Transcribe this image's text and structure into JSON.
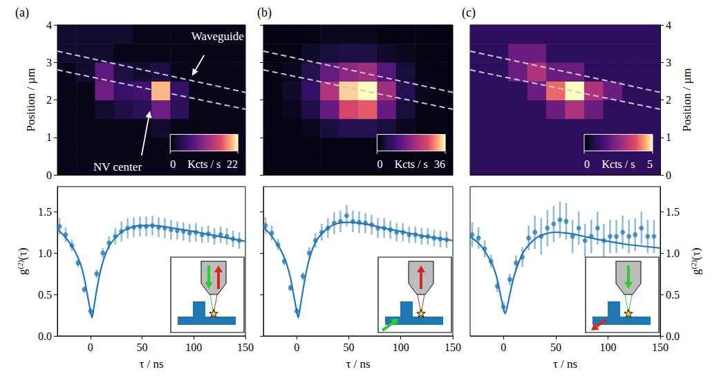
{
  "chart_data": [
    {
      "type": "heatmap",
      "label": "(a)",
      "xlim": [
        0,
        5
      ],
      "ylim": [
        0,
        4
      ],
      "yticks": [
        0,
        1,
        2,
        3,
        4
      ],
      "tick_labels": "y",
      "ylabel": "Position / µm",
      "x_edges": [
        0,
        0.5,
        1,
        1.5,
        2,
        2.5,
        3,
        3.5,
        4,
        4.5,
        5
      ],
      "y_edges": [
        0,
        0.5,
        1,
        1.5,
        2,
        2.5,
        3,
        3.5,
        4
      ],
      "z": [
        [
          1,
          1,
          1,
          1,
          1,
          1,
          1,
          1,
          1,
          1
        ],
        [
          1,
          1,
          1,
          1,
          1,
          1,
          1,
          1,
          1,
          1
        ],
        [
          1,
          1,
          1,
          1,
          1,
          2,
          1,
          1,
          1,
          1
        ],
        [
          1,
          1,
          2,
          3,
          4,
          9,
          4,
          1,
          1,
          1
        ],
        [
          1,
          1,
          9,
          5,
          6,
          20,
          5,
          1,
          1,
          1
        ],
        [
          1,
          2,
          8,
          3,
          2,
          3,
          1,
          1,
          1,
          1
        ],
        [
          2,
          2,
          2,
          1,
          1,
          1,
          1,
          1,
          1,
          1
        ],
        [
          2,
          2,
          2,
          2,
          1,
          1,
          1,
          1,
          1,
          1
        ]
      ],
      "colorbar": {
        "range": [
          0,
          22
        ],
        "ticks": [
          0,
          22
        ],
        "label": "Kcts / s"
      },
      "waveguide": [
        [
          [
            0,
            3.3
          ],
          [
            5,
            2.2
          ]
        ],
        [
          [
            0,
            2.8
          ],
          [
            5,
            1.75
          ]
        ]
      ],
      "annotations": [
        {
          "text": "Waveguide",
          "x": 4.26,
          "y": 3.7,
          "arrow": [
            [
              3.9,
              3.19
            ],
            [
              3.58,
              2.64
            ]
          ]
        },
        {
          "text": "NV center",
          "x": 1.6,
          "y": 0.22,
          "arrow": [
            [
              2.24,
              0.52
            ],
            [
              2.46,
              1.71
            ]
          ]
        }
      ]
    },
    {
      "type": "heatmap",
      "label": "(b)",
      "xlim": [
        0,
        5
      ],
      "ylim": [
        0,
        4
      ],
      "yticks": [
        0,
        1,
        2,
        3,
        4
      ],
      "tick_labels": false,
      "x_edges": [
        0,
        0.5,
        1,
        1.5,
        2,
        2.5,
        3,
        3.5,
        4,
        4.5,
        5
      ],
      "y_edges": [
        0,
        0.5,
        1,
        1.5,
        2,
        2.5,
        3,
        3.5,
        4
      ],
      "z": [
        [
          1,
          1,
          1,
          1,
          1,
          1,
          1,
          1,
          1,
          1
        ],
        [
          1,
          1,
          1,
          1,
          1,
          1,
          1,
          1,
          1,
          1
        ],
        [
          1,
          1,
          2,
          4,
          6,
          6,
          4,
          2,
          1,
          1
        ],
        [
          1,
          2,
          5,
          14,
          26,
          28,
          14,
          4,
          1,
          1
        ],
        [
          1,
          3,
          8,
          22,
          34,
          36,
          20,
          6,
          2,
          1
        ],
        [
          1,
          2,
          6,
          14,
          18,
          20,
          12,
          4,
          1,
          1
        ],
        [
          1,
          1,
          3,
          4,
          5,
          5,
          3,
          2,
          1,
          1
        ],
        [
          1,
          1,
          1,
          2,
          2,
          2,
          1,
          1,
          1,
          1
        ]
      ],
      "colorbar": {
        "range": [
          0,
          36
        ],
        "ticks": [
          0,
          36
        ],
        "label": "Kcts / s"
      },
      "waveguide": [
        [
          [
            0,
            3.3
          ],
          [
            5,
            2.2
          ]
        ],
        [
          [
            0,
            2.8
          ],
          [
            5,
            1.75
          ]
        ]
      ]
    },
    {
      "type": "heatmap",
      "label": "(c)",
      "xlim": [
        0,
        5
      ],
      "ylim": [
        0,
        4
      ],
      "yticks": [
        0,
        1,
        2,
        3,
        4
      ],
      "tick_labels": "y",
      "ylabel": "Position / µm",
      "x_edges": [
        0,
        0.5,
        1,
        1.5,
        2,
        2.5,
        3,
        3.5,
        4,
        4.5,
        5
      ],
      "y_edges": [
        0,
        0.5,
        1,
        1.5,
        2,
        2.5,
        3,
        3.5,
        4
      ],
      "z": [
        [
          1,
          1,
          1,
          1,
          1,
          1,
          1,
          1,
          1,
          1
        ],
        [
          1,
          1,
          1,
          1,
          1,
          1,
          1,
          1,
          1,
          1
        ],
        [
          1,
          1,
          1,
          1,
          1,
          1,
          1,
          1,
          1,
          1
        ],
        [
          1,
          1,
          1,
          1,
          2,
          3,
          2,
          1,
          1,
          1
        ],
        [
          1,
          1,
          1,
          2,
          4,
          5,
          3,
          2,
          1,
          1
        ],
        [
          1,
          1,
          2,
          3,
          2,
          2,
          1,
          1,
          1,
          1
        ],
        [
          1,
          1,
          2,
          2,
          1,
          1,
          1,
          1,
          1,
          1
        ],
        [
          1,
          1,
          1,
          1,
          1,
          1,
          1,
          1,
          1,
          1
        ]
      ],
      "colorbar": {
        "range": [
          0,
          5
        ],
        "ticks": [
          0,
          5
        ],
        "label": "Kcts / s"
      },
      "waveguide": [
        [
          [
            0,
            3.3
          ],
          [
            5,
            2.2
          ]
        ],
        [
          [
            0,
            2.8
          ],
          [
            5,
            1.75
          ]
        ]
      ]
    },
    {
      "type": "scatter",
      "color": "#1f77b4",
      "marker": "circle",
      "xlim": [
        -32,
        150
      ],
      "xticks": [
        0,
        50,
        100,
        150
      ],
      "ylim": [
        0,
        1.8
      ],
      "yticks": [
        {
          "value": 0,
          "label": "0.0"
        },
        {
          "value": 0.5,
          "label": "0.5"
        },
        {
          "value": 1,
          "label": "1.0"
        },
        {
          "value": 1.5,
          "label": "1.5"
        }
      ],
      "tick_labels": true,
      "xlabel": "τ / ns",
      "ylabel": "g(2)(τ)",
      "x": [
        -30,
        -24,
        -18,
        -12,
        -6,
        0,
        6,
        12,
        18,
        24,
        30,
        36,
        42,
        48,
        54,
        60,
        66,
        72,
        78,
        84,
        90,
        96,
        102,
        108,
        114,
        120,
        126,
        132,
        138,
        144
      ],
      "values": [
        1.32,
        1.22,
        1.09,
        0.88,
        0.56,
        0.3,
        0.75,
        1.0,
        1.12,
        1.2,
        1.26,
        1.3,
        1.31,
        1.32,
        1.32,
        1.33,
        1.31,
        1.3,
        1.28,
        1.27,
        1.26,
        1.24,
        1.25,
        1.22,
        1.23,
        1.2,
        1.22,
        1.2,
        1.17,
        1.15
      ],
      "errors": [
        0.1,
        0.09,
        0.07,
        0.05,
        0.04,
        0.04,
        0.05,
        0.06,
        0.08,
        0.1,
        0.12,
        0.12,
        0.12,
        0.12,
        0.12,
        0.12,
        0.12,
        0.12,
        0.12,
        0.11,
        0.11,
        0.11,
        0.11,
        0.1,
        0.1,
        0.1,
        0.1,
        0.1,
        0.1,
        0.1
      ],
      "fit": {
        "x": [
          -32,
          -25,
          -20,
          -15,
          -10,
          -6,
          -3,
          0,
          1.5,
          3,
          6,
          10,
          15,
          20,
          30,
          40,
          50,
          60,
          70,
          80,
          100,
          120,
          150
        ],
        "values": [
          1.29,
          1.2,
          1.12,
          1.02,
          0.88,
          0.7,
          0.5,
          0.3,
          0.22,
          0.32,
          0.55,
          0.8,
          1.0,
          1.12,
          1.25,
          1.31,
          1.33,
          1.33,
          1.32,
          1.3,
          1.26,
          1.21,
          1.14
        ]
      }
    },
    {
      "type": "scatter",
      "color": "#1f77b4",
      "marker": "circle",
      "xlim": [
        -32,
        150
      ],
      "xticks": [
        0,
        50,
        100,
        150
      ],
      "ylim": [
        0,
        1.8
      ],
      "yticks": [
        {
          "value": 0,
          "label": "0.0"
        },
        {
          "value": 0.5,
          "label": "0.5"
        },
        {
          "value": 1,
          "label": "1.0"
        },
        {
          "value": 1.5,
          "label": "1.5"
        }
      ],
      "tick_labels": "x",
      "xlabel": "τ / ns",
      "x": [
        -30,
        -24,
        -18,
        -12,
        -6,
        0,
        6,
        12,
        18,
        24,
        30,
        36,
        42,
        48,
        54,
        60,
        66,
        72,
        78,
        84,
        90,
        96,
        102,
        108,
        114,
        120,
        126,
        132,
        138,
        144
      ],
      "values": [
        1.33,
        1.24,
        1.1,
        0.9,
        0.58,
        0.3,
        0.72,
        1.0,
        1.15,
        1.25,
        1.3,
        1.36,
        1.38,
        1.45,
        1.38,
        1.37,
        1.36,
        1.34,
        1.3,
        1.3,
        1.28,
        1.25,
        1.25,
        1.22,
        1.22,
        1.2,
        1.2,
        1.18,
        1.17,
        1.16
      ],
      "errors": [
        0.1,
        0.09,
        0.07,
        0.05,
        0.04,
        0.04,
        0.05,
        0.07,
        0.09,
        0.1,
        0.12,
        0.13,
        0.13,
        0.13,
        0.13,
        0.13,
        0.12,
        0.12,
        0.12,
        0.12,
        0.11,
        0.11,
        0.11,
        0.1,
        0.1,
        0.1,
        0.1,
        0.1,
        0.1,
        0.1
      ],
      "fit": {
        "x": [
          -32,
          -25,
          -20,
          -15,
          -10,
          -6,
          -3,
          0,
          1.5,
          3,
          6,
          10,
          15,
          20,
          30,
          40,
          50,
          60,
          70,
          80,
          100,
          120,
          150
        ],
        "values": [
          1.31,
          1.22,
          1.13,
          1.03,
          0.88,
          0.7,
          0.5,
          0.3,
          0.22,
          0.32,
          0.55,
          0.82,
          1.04,
          1.17,
          1.3,
          1.36,
          1.37,
          1.36,
          1.34,
          1.31,
          1.26,
          1.21,
          1.15
        ]
      }
    },
    {
      "type": "scatter",
      "color": "#1f77b4",
      "marker": "circle",
      "xlim": [
        -32,
        150
      ],
      "xticks": [
        0,
        50,
        100,
        150
      ],
      "ylim": [
        0,
        1.8
      ],
      "yticks": [
        {
          "value": 0,
          "label": "0.0"
        },
        {
          "value": 0.5,
          "label": "0.5"
        },
        {
          "value": 1,
          "label": "1.0"
        },
        {
          "value": 1.5,
          "label": "1.5"
        }
      ],
      "tick_labels": true,
      "xlabel": "τ / ns",
      "ylabel": "g(2)(τ)",
      "x": [
        -30,
        -24,
        -18,
        -12,
        -6,
        0,
        6,
        12,
        18,
        24,
        30,
        36,
        42,
        48,
        54,
        60,
        66,
        72,
        78,
        84,
        90,
        96,
        102,
        108,
        114,
        120,
        126,
        132,
        138,
        144
      ],
      "values": [
        1.22,
        1.18,
        1.05,
        0.9,
        0.6,
        0.35,
        0.68,
        0.88,
        0.95,
        1.18,
        1.25,
        1.2,
        1.3,
        1.35,
        1.4,
        1.38,
        1.2,
        1.3,
        1.15,
        1.2,
        1.3,
        1.15,
        1.2,
        1.2,
        1.25,
        1.2,
        1.22,
        1.3,
        1.2,
        1.2
      ],
      "errors": [
        0.15,
        0.13,
        0.1,
        0.08,
        0.07,
        0.06,
        0.07,
        0.09,
        0.12,
        0.15,
        0.2,
        0.22,
        0.22,
        0.22,
        0.22,
        0.22,
        0.2,
        0.2,
        0.2,
        0.2,
        0.2,
        0.2,
        0.2,
        0.2,
        0.2,
        0.2,
        0.2,
        0.2,
        0.2,
        0.2
      ],
      "fit": {
        "x": [
          -32,
          -25,
          -20,
          -15,
          -10,
          -6,
          -3,
          0,
          1.5,
          3,
          6,
          10,
          15,
          20,
          30,
          40,
          50,
          60,
          70,
          80,
          100,
          120,
          150
        ],
        "values": [
          1.2,
          1.13,
          1.06,
          0.96,
          0.84,
          0.68,
          0.5,
          0.33,
          0.27,
          0.32,
          0.5,
          0.72,
          0.9,
          1.03,
          1.17,
          1.23,
          1.25,
          1.24,
          1.22,
          1.19,
          1.14,
          1.1,
          1.06
        ]
      }
    }
  ]
}
